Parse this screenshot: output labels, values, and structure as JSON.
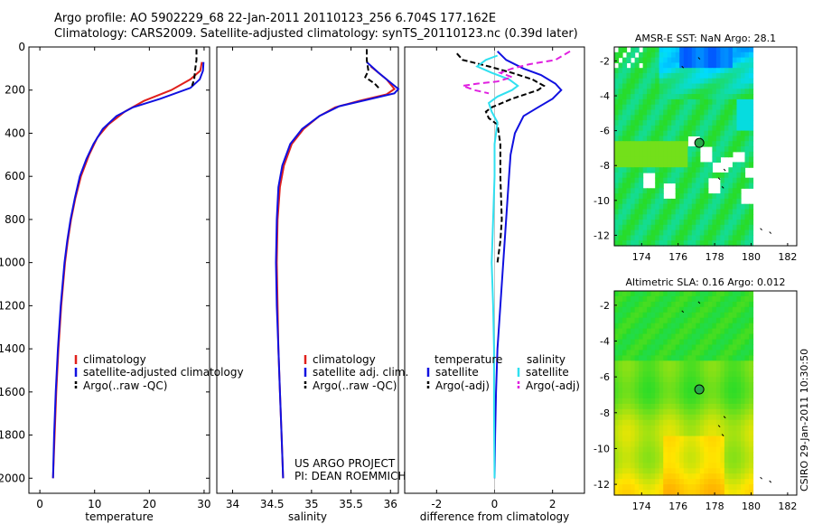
{
  "title_line1": "Argo profile: AO 5902229_68 22-Jan-2011 20110123_256 6.704S 177.162E",
  "title_line2": "Climatology: CARS2009. Satellite-adjusted climatology: synTS_20110123.nc (0.39d later)",
  "side_label": "CSIRO 29-Jan-2011 10:30:50",
  "colors": {
    "red": "#e0201c",
    "blue": "#1010e0",
    "black": "#000000",
    "cyan": "#30e0f0",
    "magenta": "#e020e0",
    "marker": "#2aa84a"
  },
  "chart_data": [
    {
      "type": "line",
      "id": "temperature",
      "xlabel": "temperature",
      "ylabel": "",
      "xlim": [
        -2,
        31
      ],
      "ylim": [
        2070,
        0
      ],
      "xticks": [
        0,
        10,
        20,
        30
      ],
      "yticks": [
        0,
        200,
        400,
        600,
        800,
        1000,
        1200,
        1400,
        1600,
        1800,
        2000
      ],
      "legend": [
        "climatology",
        "satellite-adjusted climatology",
        "Argo(..raw -QC)"
      ],
      "series": [
        {
          "name": "climatology",
          "color": "red",
          "dash": "",
          "points": [
            [
              29.6,
              70
            ],
            [
              29.3,
              110
            ],
            [
              27.5,
              150
            ],
            [
              24,
              200
            ],
            [
              19,
              250
            ],
            [
              15.5,
              300
            ],
            [
              12.5,
              360
            ],
            [
              10.5,
              420
            ],
            [
              9,
              500
            ],
            [
              7.5,
              600
            ],
            [
              6.5,
              700
            ],
            [
              5.7,
              800
            ],
            [
              5.1,
              900
            ],
            [
              4.6,
              1000
            ],
            [
              3.9,
              1200
            ],
            [
              3.4,
              1400
            ],
            [
              3,
              1600
            ],
            [
              2.7,
              1800
            ],
            [
              2.4,
              2000
            ]
          ]
        },
        {
          "name": "satellite-adjusted climatology",
          "color": "blue",
          "dash": "",
          "points": [
            [
              29.9,
              70
            ],
            [
              29.8,
              110
            ],
            [
              29.2,
              150
            ],
            [
              27.5,
              190
            ],
            [
              22,
              240
            ],
            [
              17,
              280
            ],
            [
              14,
              320
            ],
            [
              11.5,
              380
            ],
            [
              9.8,
              450
            ],
            [
              8.5,
              520
            ],
            [
              7.3,
              600
            ],
            [
              6.4,
              700
            ],
            [
              5.6,
              800
            ],
            [
              5,
              900
            ],
            [
              4.5,
              1000
            ],
            [
              3.8,
              1200
            ],
            [
              3.3,
              1400
            ],
            [
              2.9,
              1600
            ],
            [
              2.6,
              1800
            ],
            [
              2.4,
              2000
            ]
          ]
        },
        {
          "name": "Argo(..raw -QC)",
          "color": "black",
          "dash": "6,3",
          "points": [
            [
              28.6,
              10
            ],
            [
              28.6,
              60
            ],
            [
              28.4,
              100
            ],
            [
              28.2,
              150
            ],
            [
              27.8,
              180
            ]
          ]
        }
      ],
      "annotations": []
    },
    {
      "type": "line",
      "id": "salinity",
      "xlabel": "salinity",
      "ylabel": "",
      "xlim": [
        33.8,
        36.1
      ],
      "ylim": [
        2070,
        0
      ],
      "xticks": [
        34,
        34.5,
        35,
        35.5,
        36
      ],
      "yticks": [],
      "legend": [
        "climatology",
        "satellite adj. clim.",
        "Argo(..raw -QC)"
      ],
      "series": [
        {
          "name": "climatology",
          "color": "red",
          "dash": "",
          "points": [
            [
              35.75,
              90
            ],
            [
              35.95,
              150
            ],
            [
              36.05,
              195
            ],
            [
              35.95,
              220
            ],
            [
              35.6,
              250
            ],
            [
              35.3,
              280
            ],
            [
              35.1,
              320
            ],
            [
              34.9,
              380
            ],
            [
              34.75,
              450
            ],
            [
              34.65,
              550
            ],
            [
              34.6,
              650
            ],
            [
              34.57,
              800
            ],
            [
              34.56,
              1000
            ],
            [
              34.57,
              1200
            ],
            [
              34.58,
              1400
            ],
            [
              34.6,
              1600
            ],
            [
              34.62,
              1800
            ],
            [
              34.64,
              2000
            ]
          ]
        },
        {
          "name": "satellite adj. clim.",
          "color": "blue",
          "dash": "",
          "points": [
            [
              35.7,
              70
            ],
            [
              35.85,
              120
            ],
            [
              36.0,
              165
            ],
            [
              36.1,
              195
            ],
            [
              36.05,
              215
            ],
            [
              35.7,
              245
            ],
            [
              35.35,
              275
            ],
            [
              35.1,
              320
            ],
            [
              34.88,
              380
            ],
            [
              34.73,
              450
            ],
            [
              34.63,
              550
            ],
            [
              34.58,
              650
            ],
            [
              34.56,
              800
            ],
            [
              34.55,
              1000
            ],
            [
              34.56,
              1200
            ],
            [
              34.58,
              1400
            ],
            [
              34.6,
              1600
            ],
            [
              34.62,
              1800
            ],
            [
              34.64,
              2000
            ]
          ]
        },
        {
          "name": "Argo(..raw -QC)",
          "color": "black",
          "dash": "6,3",
          "points": [
            [
              35.7,
              10
            ],
            [
              35.7,
              60
            ],
            [
              35.72,
              110
            ],
            [
              35.68,
              140
            ],
            [
              35.8,
              170
            ],
            [
              35.85,
              190
            ]
          ]
        }
      ],
      "annotations": [
        "US ARGO PROJECT",
        "PI: DEAN ROEMMICH"
      ]
    },
    {
      "type": "line",
      "id": "difference",
      "xlabel": "difference from climatology",
      "ylabel": "",
      "xlim": [
        -3.1,
        3.1
      ],
      "ylim": [
        2070,
        0
      ],
      "xticks": [
        -2,
        0,
        2
      ],
      "yticks": [],
      "legend": [
        "temperature",
        "satellite",
        "Argo(-adj)",
        "salinity",
        "satellite",
        "Argo(-adj)"
      ],
      "series": [
        {
          "name": "temperature satellite",
          "color": "blue",
          "dash": "",
          "points": [
            [
              0.1,
              20
            ],
            [
              0.4,
              60
            ],
            [
              1,
              100
            ],
            [
              1.6,
              130
            ],
            [
              2.1,
              170
            ],
            [
              2.3,
              200
            ],
            [
              2,
              240
            ],
            [
              1.5,
              280
            ],
            [
              1,
              320
            ],
            [
              0.7,
              400
            ],
            [
              0.55,
              500
            ],
            [
              0.5,
              600
            ],
            [
              0.45,
              700
            ],
            [
              0.4,
              800
            ],
            [
              0.3,
              1000
            ],
            [
              0.2,
              1200
            ],
            [
              0.1,
              1400
            ],
            [
              0.05,
              1600
            ],
            [
              0.02,
              1800
            ],
            [
              0,
              2000
            ]
          ]
        },
        {
          "name": "temperature Argo(-adj)",
          "color": "black",
          "dash": "6,3",
          "points": [
            [
              -1.3,
              30
            ],
            [
              -1.1,
              60
            ],
            [
              -0.2,
              90
            ],
            [
              0.6,
              120
            ],
            [
              1.3,
              150
            ],
            [
              1.7,
              180
            ],
            [
              1.5,
              200
            ],
            [
              0.6,
              240
            ],
            [
              -0.1,
              280
            ],
            [
              -0.3,
              300
            ],
            [
              -0.2,
              330
            ],
            [
              0.1,
              360
            ],
            [
              0.2,
              450
            ],
            [
              0.2,
              600
            ],
            [
              0.25,
              800
            ],
            [
              0.2,
              900
            ],
            [
              0.1,
              1000
            ]
          ]
        },
        {
          "name": "salinity satellite",
          "color": "cyan",
          "dash": "",
          "points": [
            [
              0.1,
              40
            ],
            [
              -0.3,
              60
            ],
            [
              -0.6,
              90
            ],
            [
              -0.1,
              120
            ],
            [
              0.5,
              150
            ],
            [
              0.8,
              180
            ],
            [
              0.6,
              200
            ],
            [
              0.1,
              230
            ],
            [
              -0.2,
              260
            ],
            [
              -0.1,
              300
            ],
            [
              0.1,
              350
            ],
            [
              0,
              450
            ],
            [
              0,
              600
            ],
            [
              -0.05,
              800
            ],
            [
              -0.1,
              1000
            ],
            [
              -0.05,
              1200
            ],
            [
              -0.02,
              1400
            ],
            [
              -0.02,
              1700
            ],
            [
              0,
              2000
            ]
          ]
        },
        {
          "name": "salinity Argo(-adj)",
          "color": "magenta",
          "dash": "7,4",
          "points": [
            [
              2.6,
              20
            ],
            [
              2.1,
              60
            ],
            [
              1.2,
              80
            ],
            [
              0.6,
              100
            ],
            [
              0.2,
              120
            ],
            [
              0.6,
              140
            ],
            [
              0.1,
              160
            ],
            [
              -0.6,
              170
            ],
            [
              -1.1,
              180
            ],
            [
              -0.7,
              200
            ],
            [
              -0.2,
              215
            ]
          ]
        }
      ],
      "annotations": []
    },
    {
      "type": "heatmap",
      "id": "sst_map",
      "title": "AMSR-E SST: NaN Argo: 28.1",
      "xlim": [
        172.5,
        182.5
      ],
      "ylim": [
        -12.6,
        -1.2
      ],
      "xticks": [
        174,
        176,
        178,
        180,
        182
      ],
      "yticks": [
        -2,
        -4,
        -6,
        -8,
        -10,
        -12
      ],
      "marker": [
        177.16,
        -6.7
      ]
    },
    {
      "type": "heatmap",
      "id": "sla_map",
      "title": "Altimetric SLA: 0.16 Argo: 0.012",
      "xlim": [
        172.5,
        182.5
      ],
      "ylim": [
        -12.6,
        -1.2
      ],
      "xticks": [
        174,
        176,
        178,
        180,
        182
      ],
      "yticks": [
        -2,
        -4,
        -6,
        -8,
        -10,
        -12
      ],
      "marker": [
        177.16,
        -6.7
      ]
    }
  ]
}
